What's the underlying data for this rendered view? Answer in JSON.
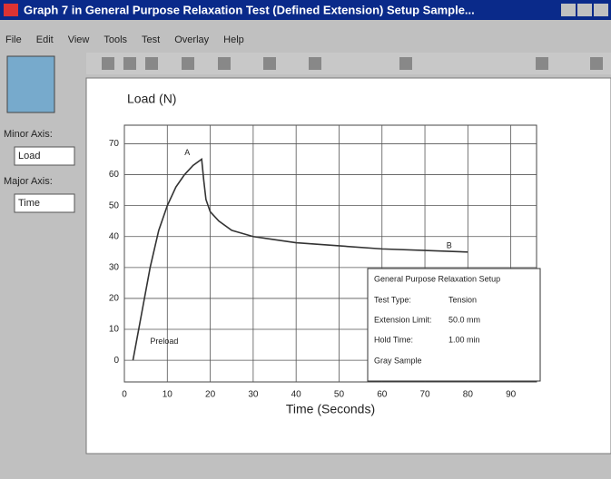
{
  "window": {
    "title": "Graph 7 in General Purpose Relaxation Test (Defined Extension) Setup Sample...",
    "menu": [
      "File",
      "Edit",
      "View",
      "Tools",
      "Test",
      "Overlay",
      "Help"
    ],
    "minor_axis_label": "Minor Axis:",
    "minor_axis_value": "Load",
    "major_axis_label": "Major Axis:",
    "major_axis_value": "Time"
  },
  "info_box": {
    "title": "General Purpose Relaxation Setup",
    "rows": [
      [
        "Test Type:",
        "Tension"
      ],
      [
        "Extension Limit:",
        "50.0 mm"
      ],
      [
        "Hold Time:",
        "1.00 min"
      ]
    ],
    "footer": "Gray Sample"
  },
  "chart_data": {
    "type": "line",
    "y_label": "Load (N)",
    "x_label": "Time (Seconds)",
    "x": [
      2,
      4,
      6,
      8,
      10,
      12,
      14,
      16,
      18,
      18.5,
      19,
      20,
      22,
      25,
      30,
      35,
      40,
      50,
      60,
      70,
      80
    ],
    "series": [
      {
        "name": "Load",
        "color": "#333333",
        "values": [
          0,
          15,
          30,
          42,
          50,
          56,
          60,
          63,
          65,
          58,
          52,
          48,
          45,
          42,
          40,
          39,
          38,
          37,
          36,
          35.5,
          35
        ]
      }
    ],
    "xlim": [
      0,
      96
    ],
    "ylim": [
      -7,
      76
    ],
    "xticks": [
      0,
      10,
      20,
      30,
      40,
      50,
      60,
      70,
      80,
      90
    ],
    "yticks": [
      0,
      10,
      20,
      30,
      40,
      50,
      60,
      70
    ],
    "grid": true,
    "annotations": [
      {
        "text": "A",
        "x": 14,
        "y": 67
      },
      {
        "text": "B",
        "x": 75,
        "y": 37
      },
      {
        "text": "Preload",
        "x": 6,
        "y": 6
      }
    ]
  }
}
